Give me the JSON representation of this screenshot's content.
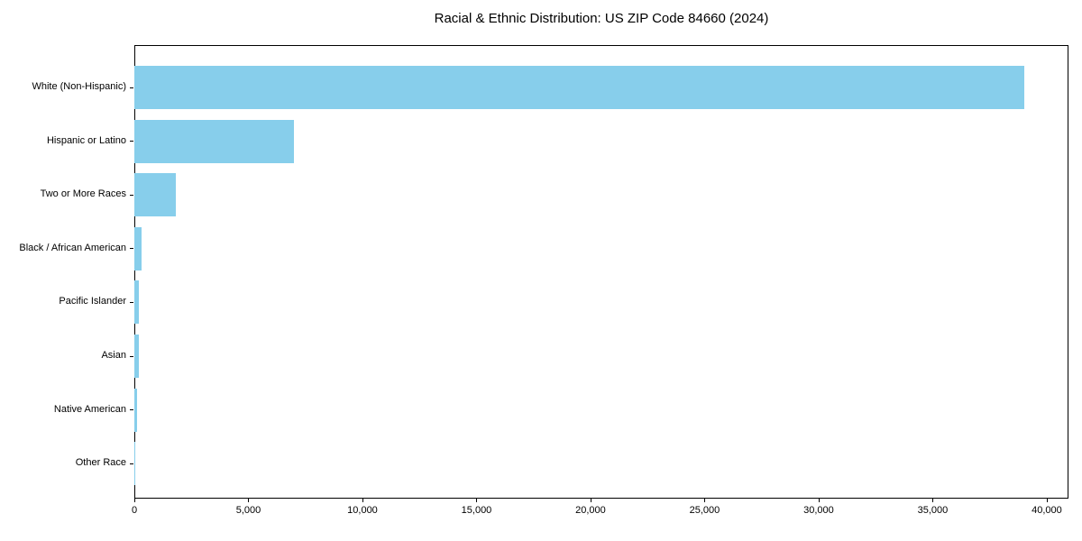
{
  "title": "Racial & Ethnic Distribution: US ZIP Code 84660 (2024)",
  "chart_data": {
    "type": "bar",
    "orientation": "horizontal",
    "title": "Racial & Ethnic Distribution: US ZIP Code 84660 (2024)",
    "xlabel": "",
    "ylabel": "",
    "categories": [
      "White (Non-Hispanic)",
      "Hispanic or Latino",
      "Two or More Races",
      "Black / African American",
      "Pacific Islander",
      "Asian",
      "Native American",
      "Other Race"
    ],
    "values": [
      39000,
      7000,
      1800,
      300,
      200,
      190,
      120,
      30
    ],
    "bar_color": "#87CEEB",
    "xlim": [
      0,
      40950
    ],
    "x_ticks": [
      0,
      5000,
      10000,
      15000,
      20000,
      25000,
      30000,
      35000,
      40000
    ],
    "x_tick_labels": [
      "0",
      "5,000",
      "10,000",
      "15,000",
      "20,000",
      "25,000",
      "30,000",
      "35,000",
      "40,000"
    ],
    "grid": false,
    "legend": "none"
  }
}
